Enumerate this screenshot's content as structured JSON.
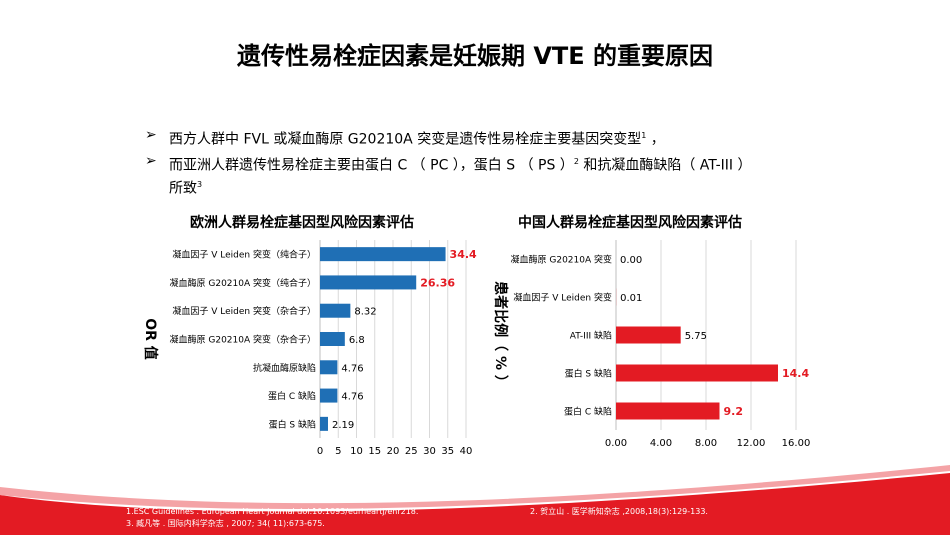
{
  "title": "遗传性易栓症因素是妊娠期 VTE 的重要原因",
  "bullets": [
    {
      "mark": "➢",
      "text": "西方人群中 FVL 或凝血酶原 G20210A  突变是遗传性易栓症主要基因突变型",
      "sup": "1",
      "tail": " ，"
    },
    {
      "mark": "➢",
      "text": "而亚洲人群遗传性易栓症主要由蛋白 C （ PC ），蛋白 S （ PS ）",
      "sup": "2",
      "tail": " 和抗凝血酶缺陷（ AT-III ）",
      "line2": "所致",
      "sup2": "3"
    }
  ],
  "colors": {
    "europe_bar": "#1f6fb5",
    "china_bar": "#e31b23",
    "highlight_label": "#e31b23",
    "footer_red": "#e31b23"
  },
  "chart_data": [
    {
      "type": "bar",
      "orientation": "horizontal",
      "title": "欧洲人群易栓症基因型风险因素评估",
      "ylabel": "OR 值",
      "xlabel": "",
      "xlim": [
        0,
        40
      ],
      "xticks": [
        "0",
        "5",
        "10",
        "15",
        "20",
        "25",
        "30",
        "35",
        "40"
      ],
      "xtick_values": [
        0,
        5,
        10,
        15,
        20,
        25,
        30,
        35,
        40
      ],
      "categories": [
        "凝血因子 V Leiden 突变（纯合子）",
        "凝血酶原 G20210A  突变（纯合子）",
        "凝血因子 V Leiden 突变（杂合子）",
        "凝血酶原 G20210A  突变（杂合子）",
        "抗凝血酶原缺陷",
        "蛋白 C 缺陷",
        "蛋白 S 缺陷"
      ],
      "values": [
        34.4,
        26.36,
        8.32,
        6.8,
        4.76,
        4.76,
        2.19
      ],
      "labels": [
        "34.4",
        "26.36",
        "8.32",
        "6.8",
        "4.76",
        "4.76",
        "2.19"
      ],
      "highlight": [
        true,
        true,
        false,
        false,
        false,
        false,
        false
      ],
      "grid": true
    },
    {
      "type": "bar",
      "orientation": "horizontal",
      "title": "中国人群易栓症基因型风险因素评估",
      "ylabel": "患者比例（ % ）",
      "xlabel": "",
      "xlim": [
        0,
        16
      ],
      "xticks": [
        "0.00",
        "4.00",
        "8.00",
        "12.00",
        "16.00"
      ],
      "xtick_values": [
        0,
        4,
        8,
        12,
        16
      ],
      "categories": [
        "凝血酶原 G20210A 突变",
        "凝血因子 V Leiden 突变",
        "AT-III 缺陷",
        "蛋白 S 缺陷",
        "蛋白 C 缺陷"
      ],
      "values": [
        0.0,
        0.01,
        5.75,
        14.4,
        9.2
      ],
      "labels": [
        "0.00",
        "0.01",
        "5.75",
        "14.4",
        "9.2"
      ],
      "highlight": [
        false,
        false,
        false,
        true,
        true
      ],
      "grid": true
    }
  ],
  "references": {
    "line1": "1.ESC Guidelines . European Heart Journal doi:10.1093/eurheartj/ehr218.",
    "line2": "3. 臧凡等 . 国际内科学杂志 , 2007; 34( 11):673-675.",
    "ref2": "2. 贺立山 . 医学新知杂志 ,2008,18(3):129-133."
  }
}
